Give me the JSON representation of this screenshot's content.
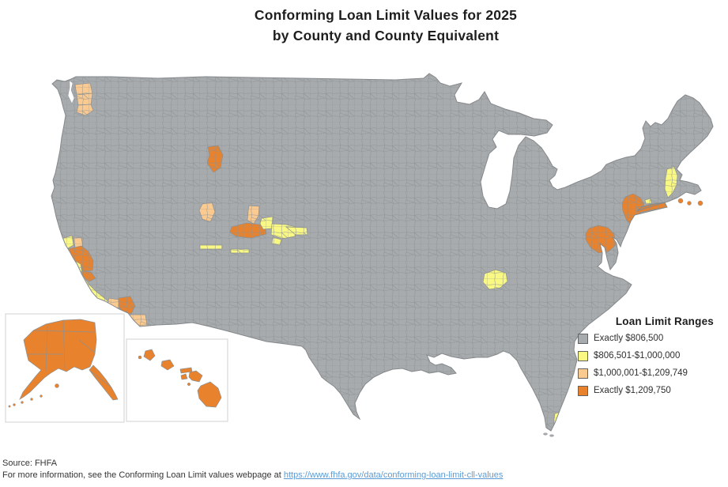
{
  "title": {
    "line1": "Conforming Loan Limit Values for 2025",
    "line2": "by County and County Equivalent"
  },
  "legend": {
    "title": "Loan Limit Ranges",
    "items": [
      {
        "label": "Exactly $806,500",
        "color": "#a8abad"
      },
      {
        "label": "$806,501-$1,000,000",
        "color": "#f9f883"
      },
      {
        "label": "$1,000,001-$1,209,749",
        "color": "#fbca90"
      },
      {
        "label": "Exactly $1,209,750",
        "color": "#e8822d"
      }
    ]
  },
  "footer": {
    "source": "Source: FHFA",
    "info_prefix": "For more information, see the Conforming Loan Limit values webpage at ",
    "link_text": "https://www.fhfa.gov/data/conforming-loan-limit-cll-values",
    "link_href": "https://www.fhfa.gov/data/conforming-loan-limit-cll-values"
  },
  "map": {
    "base_color": "#a8abad",
    "county_line_color": "#8d9193",
    "outline_color": "#85898b",
    "background": "#ffffff",
    "inset_border_color": "#d9d9d9",
    "highlights": [
      {
        "id": "seattle-metro",
        "range": "$1,000,001-$1,209,749"
      },
      {
        "id": "teton-wy-id",
        "range": "Exactly $1,209,750"
      },
      {
        "id": "blaine-id",
        "range": "$1,000,001-$1,209,749"
      },
      {
        "id": "wasatch-ut",
        "range": "$1,000,001-$1,209,749"
      },
      {
        "id": "summit-ut",
        "range": "Exactly $1,209,750"
      },
      {
        "id": "salt-lake-metro-ut",
        "range": "$806,501-$1,000,000"
      },
      {
        "id": "colorado-resorts",
        "range": "$806,501-$1,000,000"
      },
      {
        "id": "ca-wine-country",
        "range": "$806,501-$1,000,000"
      },
      {
        "id": "napa-ca",
        "range": "$1,000,001-$1,209,749"
      },
      {
        "id": "sf-bay-area",
        "range": "Exactly $1,209,750"
      },
      {
        "id": "central-coast-ca",
        "range": "$806,501-$1,000,000"
      },
      {
        "id": "ventura-ca",
        "range": "$1,000,001-$1,209,749"
      },
      {
        "id": "los-angeles-ca",
        "range": "Exactly $1,209,750"
      },
      {
        "id": "san-diego-ca",
        "range": "$1,000,001-$1,209,749"
      },
      {
        "id": "nashville-tn",
        "range": "$806,501-$1,000,000"
      },
      {
        "id": "washington-dc-metro",
        "range": "Exactly $1,209,750"
      },
      {
        "id": "new-york-metro",
        "range": "Exactly $1,209,750"
      },
      {
        "id": "eastern-massachusetts",
        "range": "$806,501-$1,000,000"
      },
      {
        "id": "ma-islands",
        "range": "Exactly $1,209,750"
      },
      {
        "id": "florida-keys",
        "range": "$806,501-$1,000,000"
      },
      {
        "id": "alaska",
        "range": "Exactly $1,209,750"
      },
      {
        "id": "hawaii",
        "range": "Exactly $1,209,750"
      }
    ]
  }
}
